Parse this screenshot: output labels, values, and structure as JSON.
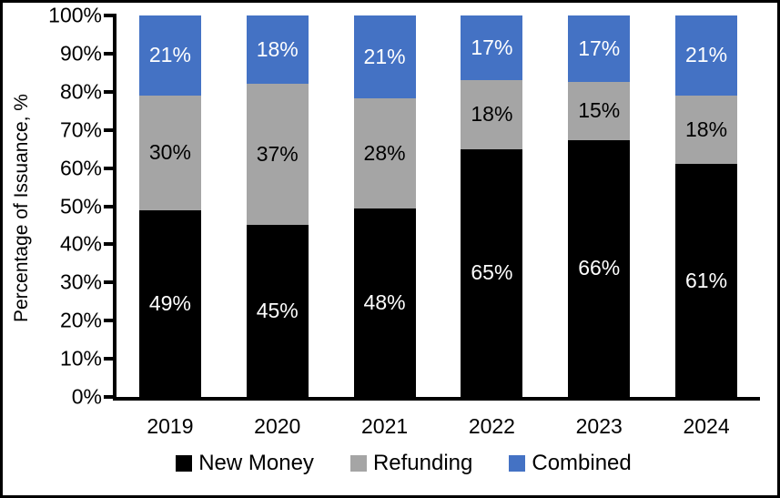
{
  "chart_data": {
    "type": "bar",
    "stacked": true,
    "title": "",
    "xlabel": "",
    "ylabel": "Percentage of Issuance, %",
    "ylim": [
      0,
      100
    ],
    "yticks": [
      0,
      10,
      20,
      30,
      40,
      50,
      60,
      70,
      80,
      90,
      100
    ],
    "ytick_suffix": "%",
    "value_suffix": "%",
    "grid": false,
    "legend_position": "bottom",
    "categories": [
      "2019",
      "2020",
      "2021",
      "2022",
      "2023",
      "2024"
    ],
    "series": [
      {
        "name": "New Money",
        "color": "#000000",
        "label_color": "#FFFFFF",
        "values": [
          49,
          45,
          48,
          65,
          66,
          61
        ]
      },
      {
        "name": "Refunding",
        "color": "#A5A5A5",
        "label_color": "#000000",
        "values": [
          30,
          37,
          28,
          18,
          15,
          18
        ]
      },
      {
        "name": "Combined",
        "color": "#4472C4",
        "label_color": "#FFFFFF",
        "values": [
          21,
          18,
          21,
          17,
          17,
          21
        ]
      }
    ]
  },
  "colors": {
    "background": "#FFFFFF",
    "frame_border": "#000000",
    "axis": "#000000"
  }
}
